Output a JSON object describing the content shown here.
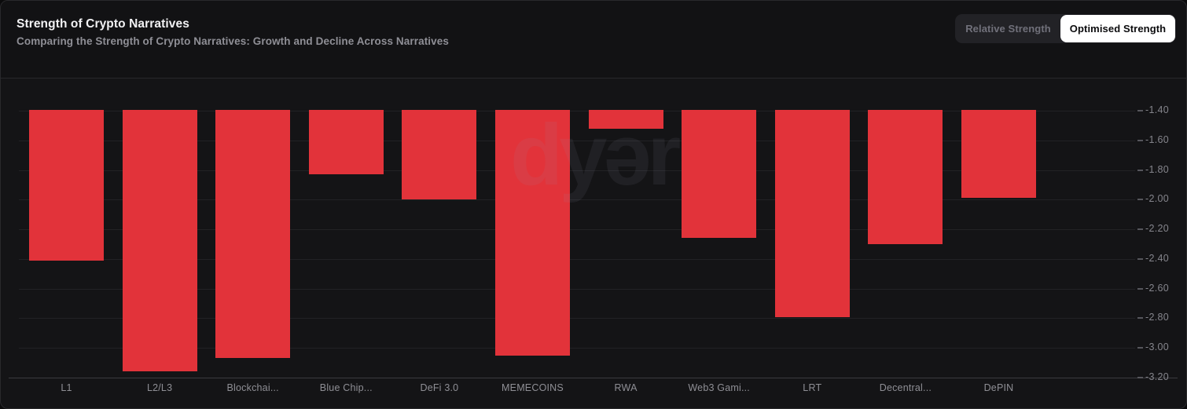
{
  "header": {
    "title": "Strength of Crypto Narratives",
    "subtitle": "Comparing the Strength of Crypto Narratives: Growth and Decline Across Narratives",
    "toggle": {
      "relative_label": "Relative Strength",
      "optimised_label": "Optimised Strength",
      "active": "Optimised Strength"
    }
  },
  "watermark": "dyər",
  "colors": {
    "bar": "#e2333a",
    "panel_background": "#141416",
    "header_background": "#121214",
    "gridline": "#222225",
    "bottom_axis_line": "#3b3b3f",
    "y_tick_text": "#85858c",
    "x_tick_text": "#8f8f95",
    "title_text": "#f2f2f4",
    "subtitle_text": "#8f8f96",
    "toggle_background": "#222226",
    "toggle_active_background": "#ffffff",
    "toggle_active_text": "#0b0b0d",
    "toggle_inactive_text": "#70707a"
  },
  "chart_data": {
    "type": "bar",
    "title": "Strength of Crypto Narratives",
    "subtitle": "Comparing the Strength of Crypto Narratives: Growth and Decline Across Narratives",
    "categories": [
      "L1",
      "L2/L3",
      "Blockchai...",
      "Blue Chip...",
      "DeFi 3.0",
      "MEMECOINS",
      "RWA",
      "Web3 Gami...",
      "LRT",
      "Decentral...",
      "DePIN"
    ],
    "values": [
      -2.41,
      -3.16,
      -3.07,
      -1.83,
      -2.0,
      -3.05,
      -1.52,
      -2.26,
      -2.79,
      -2.3,
      -1.99
    ],
    "bar_color": "#e2333a",
    "orientation": "vertical-hanging-from-top",
    "grid": true,
    "y_axis_side": "right",
    "ylim": [
      -3.2,
      -1.4
    ],
    "yticks": [
      -1.4,
      -1.6,
      -1.8,
      -2.0,
      -2.2,
      -2.4,
      -2.6,
      -2.8,
      -3.0,
      -3.2
    ],
    "ytick_labels": [
      "-1.40",
      "-1.60",
      "-1.80",
      "-2.00",
      "-2.20",
      "-2.40",
      "-2.60",
      "-2.80",
      "-3.00",
      "-3.20"
    ],
    "xlabel": "",
    "ylabel": ""
  }
}
